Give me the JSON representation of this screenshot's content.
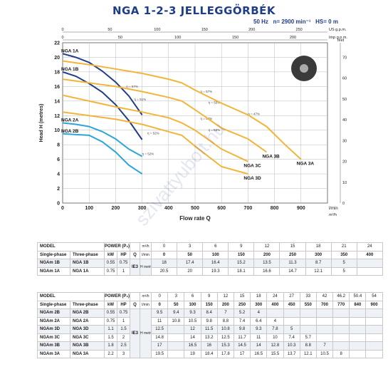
{
  "title": "NGA 1-2-3 JELLEGGÖRBÉK",
  "subtitle": "50 Hz   n= 2900 min⁻¹   HS= 0 m",
  "watermark": "szivattyubolt.hu",
  "colors": {
    "curve_a": "#f2b53a",
    "curve_b": "#1f3d8a",
    "curve_c": "#2aa6d8",
    "grid": "#b9b9b9",
    "title": "#1f3d8a"
  },
  "chart_data": {
    "type": "line",
    "xlabel": "Flow rate Q",
    "ylabel": "Head H (metres)",
    "xlim": [
      0,
      1000
    ],
    "ylim": [
      0,
      22
    ],
    "x_ticks": [
      0,
      100,
      200,
      300,
      400,
      500,
      600,
      700,
      800,
      900
    ],
    "x_unit_label": "l/min",
    "y_ticks": [
      0,
      2,
      4,
      6,
      8,
      10,
      12,
      14,
      16,
      18,
      20,
      22
    ],
    "top_axes": [
      {
        "label": "US g.p.m.",
        "ticks": [
          "0",
          "50",
          "100",
          "150",
          "200",
          "250"
        ]
      },
      {
        "label": "Imp g.p.m.",
        "ticks": [
          "0",
          "50",
          "100",
          "150",
          "200"
        ]
      }
    ],
    "right_axes": [
      {
        "label": "feet",
        "ticks": [
          "0",
          "10",
          "20",
          "30",
          "40",
          "50",
          "60",
          "70"
        ]
      }
    ],
    "right_unit_label": "m³/h",
    "efficiency_labels": [
      "η = 57%",
      "η = 51%",
      "η = 57%",
      "η = 55%",
      "η = 54%",
      "η = 53%",
      "η = 52%",
      "η = 52%",
      "η = 47%"
    ],
    "series": [
      {
        "name": "NGA 1A",
        "x": [
          0,
          50,
          100,
          150,
          200,
          250,
          300
        ],
        "y": [
          20.5,
          20,
          19.3,
          18.1,
          16.6,
          14.7,
          12.1
        ]
      },
      {
        "name": "NGA 1B",
        "x": [
          0,
          50,
          100,
          150,
          200,
          250,
          300
        ],
        "y": [
          18,
          17.4,
          16.4,
          15.2,
          13.5,
          11.3,
          8.7
        ]
      },
      {
        "name": "NGA 2A",
        "x": [
          0,
          50,
          100,
          150,
          200,
          250,
          300
        ],
        "y": [
          11,
          10.8,
          10.5,
          9.8,
          8.8,
          7.4,
          6.4
        ]
      },
      {
        "name": "NGA 2B",
        "x": [
          0,
          50,
          100,
          150,
          200,
          250,
          300
        ],
        "y": [
          9.5,
          9.4,
          9.3,
          8.4,
          7,
          5.2,
          4
        ]
      },
      {
        "name": "NGA 3D",
        "x": [
          0,
          100,
          200,
          300,
          400,
          450,
          500,
          600,
          700
        ],
        "y": [
          12.5,
          12,
          11.5,
          10.8,
          9.8,
          9.3,
          7.8,
          5,
          4
        ]
      },
      {
        "name": "NGA 3C",
        "x": [
          0,
          100,
          200,
          300,
          400,
          450,
          500,
          600,
          700
        ],
        "y": [
          14.8,
          14,
          13.2,
          12.5,
          11.7,
          11,
          10,
          7.4,
          5.7
        ]
      },
      {
        "name": "NGA 3B",
        "x": [
          0,
          100,
          200,
          300,
          400,
          450,
          500,
          600,
          700,
          770
        ],
        "y": [
          17,
          16.5,
          16,
          15.3,
          14.5,
          14,
          12.8,
          10.3,
          8.8,
          7
        ]
      },
      {
        "name": "NGA 3A",
        "x": [
          0,
          100,
          200,
          300,
          400,
          450,
          500,
          600,
          700,
          770,
          840,
          900
        ],
        "y": [
          19.5,
          19,
          18.4,
          17.8,
          17,
          16.5,
          15.5,
          13.7,
          12.1,
          10.5,
          8,
          6
        ]
      }
    ]
  },
  "table1": {
    "header": {
      "model": "MODEL",
      "power": "POWER (P₂)",
      "q": "Q",
      "single": "Single-phase",
      "three": "Three-phase",
      "kw": "kW",
      "hp": "HP",
      "m3h": "m³/h",
      "lmin": "l/min",
      "h_metres": "H metres",
      "ie": "IE3"
    },
    "q_m3h": [
      "0",
      "3",
      "6",
      "9",
      "12",
      "15",
      "18",
      "21",
      "24"
    ],
    "q_lmin": [
      "0",
      "50",
      "100",
      "150",
      "200",
      "250",
      "300",
      "350",
      "400"
    ],
    "rows": [
      {
        "single": "NGAm 1B",
        "three": "NGA 1B",
        "kw": "0.55",
        "hp": "0.75",
        "h": [
          "18",
          "17.4",
          "16.4",
          "15.2",
          "13.5",
          "11.3",
          "8.7",
          "5",
          ""
        ]
      },
      {
        "single": "NGAm 1A",
        "three": "NGA 1A",
        "kw": "0.75",
        "hp": "1",
        "h": [
          "20.5",
          "20",
          "19.3",
          "18.1",
          "16.6",
          "14.7",
          "12.1",
          "5",
          ""
        ]
      }
    ]
  },
  "table2": {
    "header": {
      "model": "MODEL",
      "power": "POWER (P₂)",
      "q": "Q",
      "single": "Single-phase",
      "three": "Three-phase",
      "kw": "kW",
      "hp": "HP",
      "m3h": "m³/h",
      "lmin": "l/min",
      "h_metres": "H metres",
      "ie": "IE3"
    },
    "q_m3h": [
      "0",
      "3",
      "6",
      "9",
      "12",
      "15",
      "18",
      "24",
      "27",
      "33",
      "42",
      "46.2",
      "50.4",
      "54"
    ],
    "q_lmin": [
      "0",
      "50",
      "100",
      "150",
      "200",
      "250",
      "300",
      "400",
      "450",
      "550",
      "700",
      "770",
      "840",
      "900"
    ],
    "rows": [
      {
        "single": "NGAm 2B",
        "three": "NGA 2B",
        "kw": "0.55",
        "hp": "0.75",
        "h": [
          "9.5",
          "9.4",
          "9.3",
          "8.4",
          "7",
          "5.2",
          "4",
          "",
          "",
          "",
          "",
          "",
          "",
          ""
        ]
      },
      {
        "single": "NGAm 2A",
        "three": "NGA 2A",
        "kw": "0.75",
        "hp": "1",
        "h": [
          "11",
          "10.8",
          "10.5",
          "9.8",
          "8.8",
          "7.4",
          "6.4",
          "4",
          "",
          "",
          "",
          "",
          "",
          ""
        ]
      },
      {
        "single": "NGAm 3D",
        "three": "NGA 3D",
        "kw": "1.1",
        "hp": "1.5",
        "h": [
          "12.5",
          "",
          "12",
          "11.5",
          "10.8",
          "9.8",
          "9.3",
          "7.8",
          "5",
          "",
          "",
          "",
          "",
          ""
        ]
      },
      {
        "single": "NGAm 3C",
        "three": "NGA 3C",
        "kw": "1.5",
        "hp": "2",
        "h": [
          "14.8",
          "",
          "14",
          "13.2",
          "12.5",
          "11.7",
          "11",
          "10",
          "7.4",
          "5.7",
          "",
          "",
          "",
          ""
        ]
      },
      {
        "single": "NGAm 3B",
        "three": "NGA 3B",
        "kw": "1.8",
        "hp": "2.5",
        "h": [
          "17",
          "",
          "16.5",
          "16",
          "15.3",
          "14.5",
          "14",
          "12.8",
          "10.3",
          "8.8",
          "7",
          "",
          "",
          ""
        ]
      },
      {
        "single": "NGAm 3A",
        "three": "NGA 3A",
        "kw": "2.2",
        "hp": "3",
        "h": [
          "19.5",
          "",
          "19",
          "18.4",
          "17.8",
          "17",
          "16.5",
          "15.5",
          "13.7",
          "12.1",
          "10.5",
          "8",
          "",
          ""
        ]
      }
    ]
  }
}
